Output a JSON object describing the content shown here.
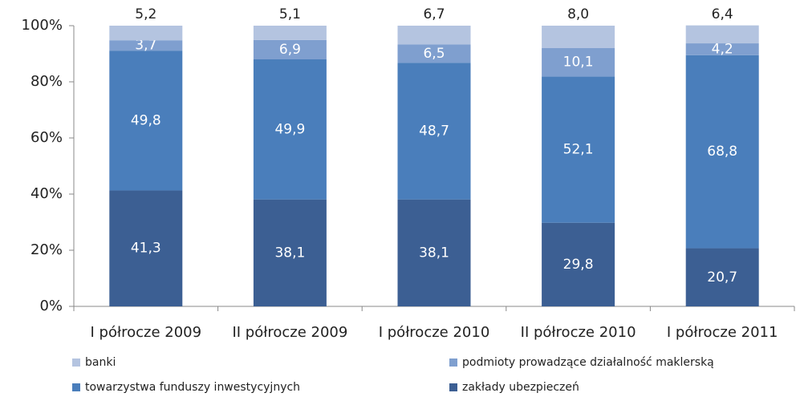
{
  "chart_data": {
    "type": "stacked_bar_100",
    "categories": [
      "I półrocze 2009",
      "II półrocze 2009",
      "I półrocze 2010",
      "II półrocze 2010",
      "I półrocze 2011"
    ],
    "series": [
      {
        "name": "zakłady ubezpieczeń",
        "color": "#3c5f93",
        "values": [
          41.3,
          38.1,
          38.1,
          29.8,
          20.7
        ],
        "value_labels": [
          "41,3",
          "38,1",
          "38,1",
          "29,8",
          "20,7"
        ]
      },
      {
        "name": "towarzystwa funduszy inwestycyjnych",
        "color": "#4a7ebb",
        "values": [
          49.8,
          49.9,
          48.7,
          52.1,
          68.8
        ],
        "value_labels": [
          "49,8",
          "49,9",
          "48,7",
          "52,1",
          "68,8"
        ]
      },
      {
        "name": "podmioty prowadzące działalność maklerską",
        "color": "#7f9fcf",
        "values": [
          3.7,
          6.9,
          6.5,
          10.1,
          4.2
        ],
        "value_labels": [
          "3,7",
          "6,9",
          "6,5",
          "10,1",
          "4,2"
        ]
      },
      {
        "name": "banki",
        "color": "#b4c4e0",
        "values": [
          5.2,
          5.1,
          6.7,
          8.0,
          6.4
        ],
        "value_labels": [
          "5,2",
          "5,1",
          "6,7",
          "8,0",
          "6,4"
        ]
      }
    ],
    "ylim": [
      0,
      100
    ],
    "yticks": [
      {
        "value": 0,
        "label": "0%"
      },
      {
        "value": 20,
        "label": "20%"
      },
      {
        "value": 40,
        "label": "40%"
      },
      {
        "value": 60,
        "label": "60%"
      },
      {
        "value": 80,
        "label": "80%"
      },
      {
        "value": 100,
        "label": "100%"
      }
    ],
    "legend": "bottom"
  }
}
